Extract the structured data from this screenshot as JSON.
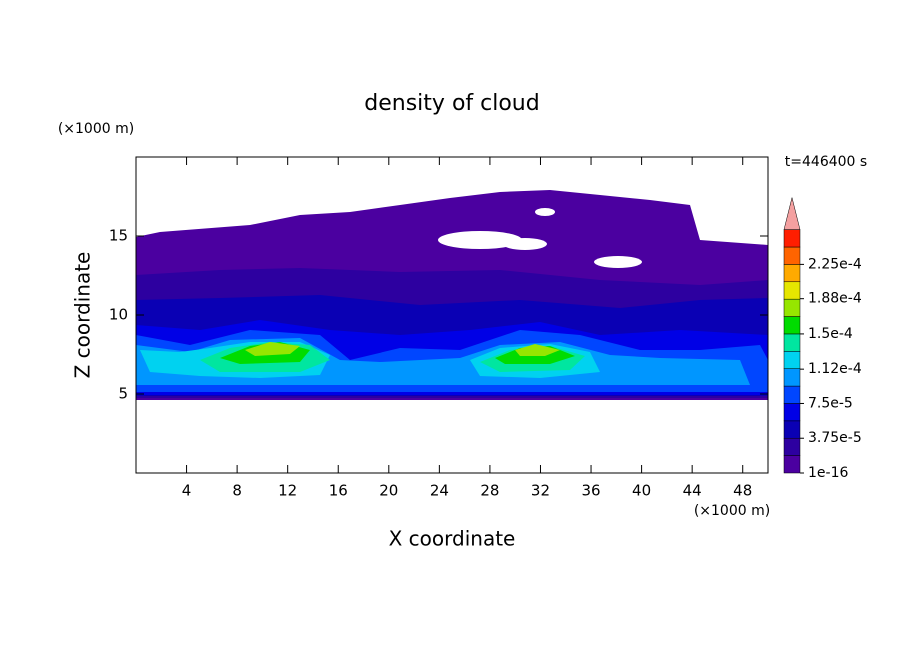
{
  "chart_data": {
    "type": "contour",
    "title": "density of cloud",
    "x_label": "X coordinate",
    "y_label": "Z coordinate",
    "x_unit": "(×1000 m)",
    "y_unit": "(×1000 m)",
    "time_label": "t=446400 s",
    "xlim": [
      0,
      50
    ],
    "ylim": [
      0,
      20
    ],
    "xticks": [
      4,
      8,
      12,
      16,
      20,
      24,
      28,
      32,
      36,
      40,
      44,
      48
    ],
    "yticks": [
      5,
      10,
      15
    ],
    "clim": [
      1e-16,
      0.00024375
    ],
    "cticks": [
      1e-16,
      {
        "value": 3.75e-05,
        "label": "3.75e-5"
      },
      {
        "value": 7.5e-05,
        "label": "7.5e-5"
      },
      {
        "value": 0.000112,
        "label": "1.12e-4"
      },
      {
        "value": 0.00015,
        "label": "1.5e-4"
      },
      {
        "value": 0.000188,
        "label": "1.88e-4"
      },
      {
        "value": 0.000225,
        "label": "2.25e-4"
      }
    ],
    "colors": [
      "#4b00a0",
      "#2d00a0",
      "#0a00b4",
      "#0000e6",
      "#0046ff",
      "#0096ff",
      "#00d2f0",
      "#00e6a0",
      "#00dc00",
      "#96e600",
      "#e6e600",
      "#ffaa00",
      "#ff6400",
      "#ff1e00"
    ],
    "extend_color": "#f4a0a0"
  }
}
